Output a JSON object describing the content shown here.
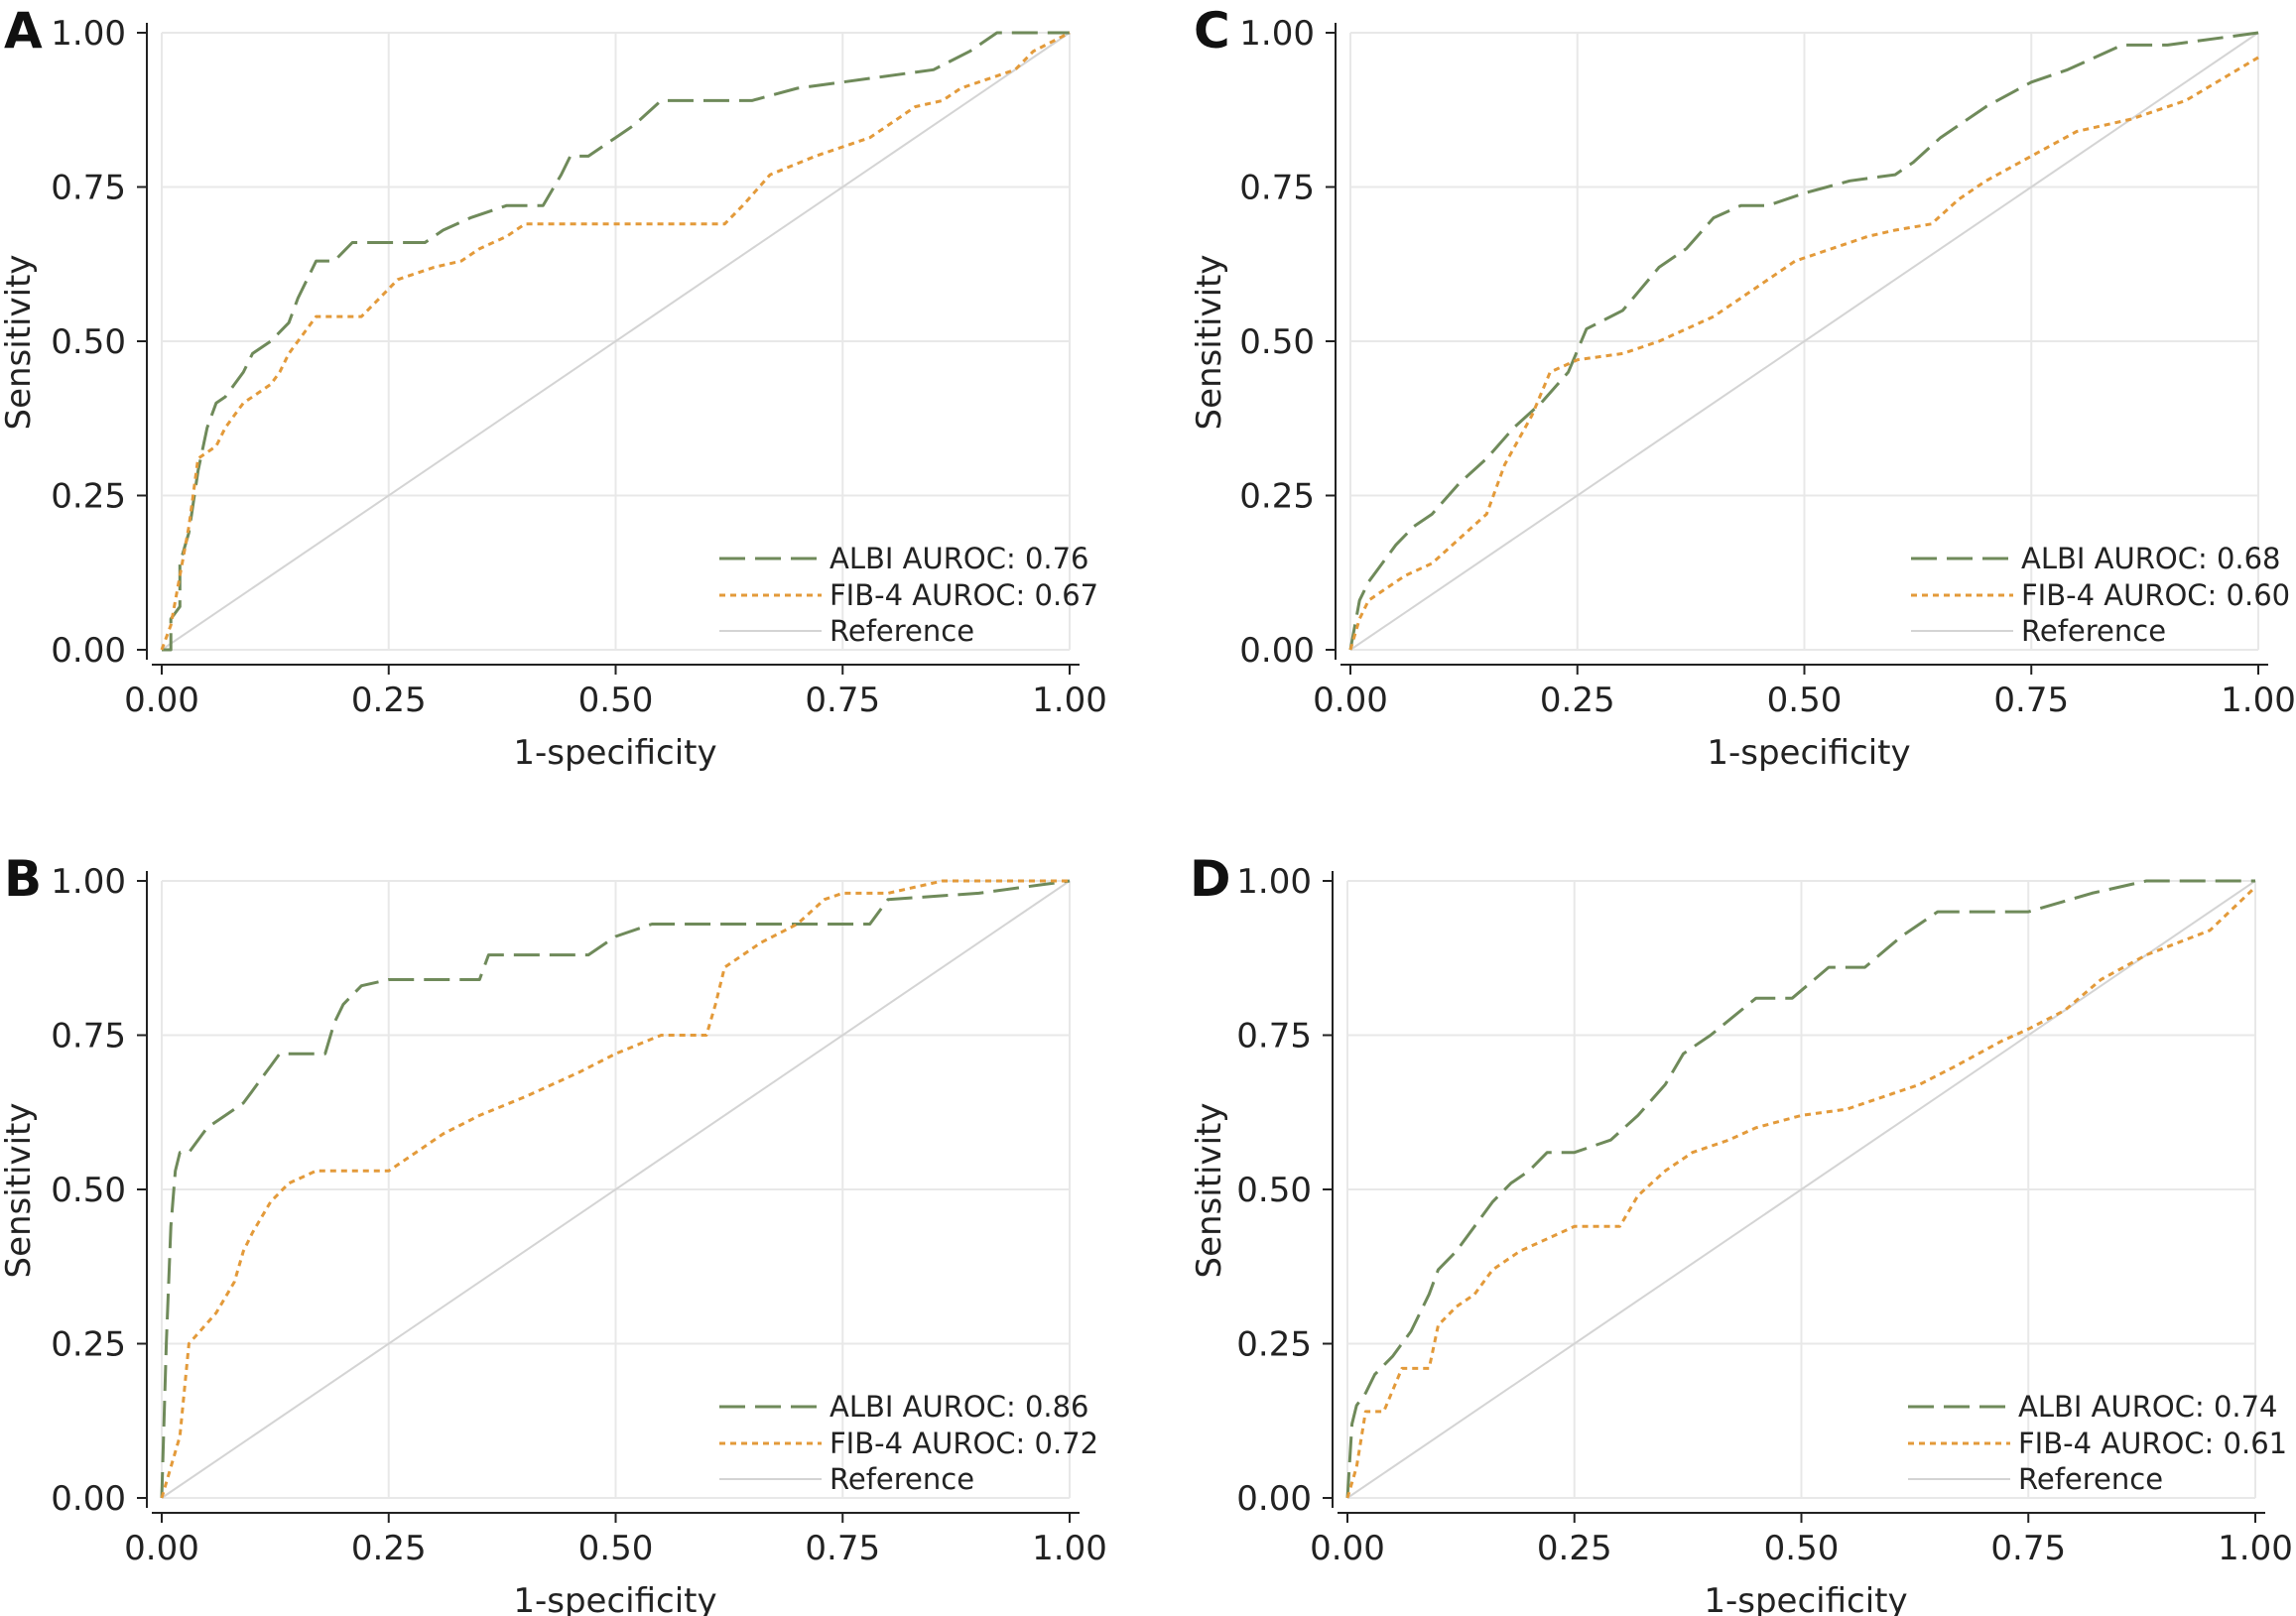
{
  "colors": {
    "albi": "#6f8a5a",
    "fib4": "#e39a3a",
    "reference": "#d4d4d4",
    "grid": "#e8e8e8",
    "axis": "#222222"
  },
  "chart_data": [
    {
      "panel": "A",
      "type": "line",
      "xlabel": "1-specificity",
      "ylabel": "Sensitivity",
      "xlim": [
        0,
        1
      ],
      "ylim": [
        0,
        1
      ],
      "ticks": [
        "0.00",
        "0.25",
        "0.50",
        "0.75",
        "1.00"
      ],
      "grid": true,
      "legend_position": "bottom-right",
      "series": [
        {
          "name": "ALBI AUROC: 0.76",
          "style": "dashed",
          "color": "#6f8a5a",
          "x": [
            0,
            0.01,
            0.01,
            0.02,
            0.02,
            0.03,
            0.04,
            0.05,
            0.06,
            0.07,
            0.08,
            0.09,
            0.1,
            0.12,
            0.14,
            0.15,
            0.17,
            0.19,
            0.21,
            0.29,
            0.31,
            0.34,
            0.38,
            0.42,
            0.44,
            0.45,
            0.47,
            0.5,
            0.52,
            0.55,
            0.65,
            0.7,
            0.85,
            0.89,
            0.92,
            1.0
          ],
          "y": [
            0,
            0,
            0.05,
            0.07,
            0.14,
            0.19,
            0.29,
            0.36,
            0.4,
            0.41,
            0.43,
            0.45,
            0.48,
            0.5,
            0.53,
            0.57,
            0.63,
            0.63,
            0.66,
            0.66,
            0.68,
            0.7,
            0.72,
            0.72,
            0.77,
            0.8,
            0.8,
            0.83,
            0.85,
            0.89,
            0.89,
            0.91,
            0.94,
            0.97,
            1.0,
            1.0
          ]
        },
        {
          "name": "FIB-4 AUROC: 0.67",
          "style": "dotted",
          "color": "#e39a3a",
          "x": [
            0,
            0.01,
            0.02,
            0.03,
            0.04,
            0.05,
            0.06,
            0.07,
            0.08,
            0.09,
            0.1,
            0.12,
            0.13,
            0.14,
            0.16,
            0.17,
            0.22,
            0.24,
            0.26,
            0.3,
            0.33,
            0.35,
            0.38,
            0.4,
            0.62,
            0.64,
            0.67,
            0.72,
            0.78,
            0.81,
            0.83,
            0.86,
            0.88,
            0.94,
            0.96,
            1.0
          ],
          "y": [
            0,
            0.04,
            0.12,
            0.2,
            0.31,
            0.32,
            0.33,
            0.36,
            0.38,
            0.4,
            0.41,
            0.43,
            0.45,
            0.48,
            0.52,
            0.54,
            0.54,
            0.57,
            0.6,
            0.62,
            0.63,
            0.65,
            0.67,
            0.69,
            0.69,
            0.72,
            0.77,
            0.8,
            0.83,
            0.86,
            0.88,
            0.89,
            0.91,
            0.94,
            0.97,
            1.0
          ]
        },
        {
          "name": "Reference",
          "style": "solid",
          "color": "#d4d4d4",
          "x": [
            0,
            1
          ],
          "y": [
            0,
            1
          ]
        }
      ]
    },
    {
      "panel": "C",
      "type": "line",
      "xlabel": "1-specificity",
      "ylabel": "Sensitivity",
      "xlim": [
        0,
        1
      ],
      "ylim": [
        0,
        1
      ],
      "ticks": [
        "0.00",
        "0.25",
        "0.50",
        "0.75",
        "1.00"
      ],
      "grid": true,
      "legend_position": "bottom-right",
      "series": [
        {
          "name": "ALBI AUROC: 0.68",
          "style": "dashed",
          "color": "#6f8a5a",
          "x": [
            0,
            0.01,
            0.02,
            0.03,
            0.05,
            0.07,
            0.09,
            0.12,
            0.15,
            0.18,
            0.21,
            0.24,
            0.26,
            0.3,
            0.34,
            0.37,
            0.4,
            0.43,
            0.46,
            0.5,
            0.55,
            0.6,
            0.62,
            0.65,
            0.7,
            0.75,
            0.79,
            0.85,
            0.9,
            1.0
          ],
          "y": [
            0,
            0.08,
            0.11,
            0.13,
            0.17,
            0.2,
            0.22,
            0.27,
            0.31,
            0.36,
            0.4,
            0.45,
            0.52,
            0.55,
            0.62,
            0.65,
            0.7,
            0.72,
            0.72,
            0.74,
            0.76,
            0.77,
            0.79,
            0.83,
            0.88,
            0.92,
            0.94,
            0.98,
            0.98,
            1.0
          ]
        },
        {
          "name": "FIB-4 AUROC: 0.60",
          "style": "dotted",
          "color": "#e39a3a",
          "x": [
            0,
            0.01,
            0.02,
            0.04,
            0.06,
            0.09,
            0.12,
            0.15,
            0.17,
            0.2,
            0.22,
            0.25,
            0.3,
            0.34,
            0.37,
            0.4,
            0.43,
            0.46,
            0.49,
            0.53,
            0.57,
            0.6,
            0.64,
            0.67,
            0.7,
            0.75,
            0.8,
            0.86,
            0.92,
            1.0
          ],
          "y": [
            0,
            0.05,
            0.08,
            0.1,
            0.12,
            0.14,
            0.18,
            0.22,
            0.3,
            0.38,
            0.45,
            0.47,
            0.48,
            0.5,
            0.52,
            0.54,
            0.57,
            0.6,
            0.63,
            0.65,
            0.67,
            0.68,
            0.69,
            0.73,
            0.76,
            0.8,
            0.84,
            0.86,
            0.89,
            0.96
          ]
        },
        {
          "name": "Reference",
          "style": "solid",
          "color": "#d4d4d4",
          "x": [
            0,
            1
          ],
          "y": [
            0,
            1
          ]
        }
      ]
    },
    {
      "panel": "B",
      "type": "line",
      "xlabel": "1-specificity",
      "ylabel": "Sensitivity",
      "xlim": [
        0,
        1
      ],
      "ylim": [
        0,
        1
      ],
      "ticks": [
        "0.00",
        "0.25",
        "0.50",
        "0.75",
        "1.00"
      ],
      "grid": true,
      "legend_position": "bottom-right",
      "series": [
        {
          "name": "ALBI AUROC: 0.86",
          "style": "dashed",
          "color": "#6f8a5a",
          "x": [
            0,
            0.005,
            0.01,
            0.015,
            0.02,
            0.03,
            0.05,
            0.07,
            0.09,
            0.1,
            0.11,
            0.12,
            0.13,
            0.14,
            0.18,
            0.19,
            0.2,
            0.22,
            0.25,
            0.35,
            0.36,
            0.39,
            0.47,
            0.5,
            0.54,
            0.64,
            0.7,
            0.78,
            0.8,
            0.9,
            1.0
          ],
          "y": [
            0,
            0.25,
            0.44,
            0.53,
            0.56,
            0.56,
            0.6,
            0.62,
            0.64,
            0.66,
            0.68,
            0.7,
            0.72,
            0.72,
            0.72,
            0.77,
            0.8,
            0.83,
            0.84,
            0.84,
            0.88,
            0.88,
            0.88,
            0.91,
            0.93,
            0.93,
            0.93,
            0.93,
            0.97,
            0.98,
            1.0
          ]
        },
        {
          "name": "FIB-4 AUROC: 0.72",
          "style": "dotted",
          "color": "#e39a3a",
          "x": [
            0,
            0.01,
            0.02,
            0.03,
            0.06,
            0.08,
            0.09,
            0.1,
            0.12,
            0.14,
            0.17,
            0.25,
            0.28,
            0.31,
            0.35,
            0.4,
            0.46,
            0.5,
            0.55,
            0.6,
            0.61,
            0.62,
            0.66,
            0.7,
            0.73,
            0.75,
            0.8,
            0.86,
            1.0
          ],
          "y": [
            0,
            0.05,
            0.1,
            0.25,
            0.3,
            0.35,
            0.4,
            0.43,
            0.48,
            0.51,
            0.53,
            0.53,
            0.56,
            0.59,
            0.62,
            0.65,
            0.69,
            0.72,
            0.75,
            0.75,
            0.8,
            0.86,
            0.9,
            0.93,
            0.97,
            0.98,
            0.98,
            1.0,
            1.0
          ]
        },
        {
          "name": "Reference",
          "style": "solid",
          "color": "#d4d4d4",
          "x": [
            0,
            1
          ],
          "y": [
            0,
            1
          ]
        }
      ]
    },
    {
      "panel": "D",
      "type": "line",
      "xlabel": "1-specificity",
      "ylabel": "Sensitivity",
      "xlim": [
        0,
        1
      ],
      "ylim": [
        0,
        1
      ],
      "ticks": [
        "0.00",
        "0.25",
        "0.50",
        "0.75",
        "1.00"
      ],
      "grid": true,
      "legend_position": "bottom-right",
      "series": [
        {
          "name": "ALBI AUROC: 0.74",
          "style": "dashed",
          "color": "#6f8a5a",
          "x": [
            0,
            0.005,
            0.01,
            0.02,
            0.03,
            0.05,
            0.07,
            0.09,
            0.1,
            0.12,
            0.14,
            0.16,
            0.18,
            0.2,
            0.22,
            0.25,
            0.29,
            0.32,
            0.35,
            0.37,
            0.4,
            0.45,
            0.49,
            0.53,
            0.57,
            0.61,
            0.65,
            0.75,
            0.82,
            0.88,
            1.0
          ],
          "y": [
            0,
            0.12,
            0.15,
            0.17,
            0.2,
            0.23,
            0.27,
            0.33,
            0.37,
            0.4,
            0.44,
            0.48,
            0.51,
            0.53,
            0.56,
            0.56,
            0.58,
            0.62,
            0.67,
            0.72,
            0.75,
            0.81,
            0.81,
            0.86,
            0.86,
            0.91,
            0.95,
            0.95,
            0.98,
            1.0,
            1.0
          ]
        },
        {
          "name": "FIB-4 AUROC: 0.61",
          "style": "dotted",
          "color": "#e39a3a",
          "x": [
            0,
            0.01,
            0.02,
            0.04,
            0.06,
            0.09,
            0.1,
            0.12,
            0.14,
            0.16,
            0.19,
            0.22,
            0.25,
            0.3,
            0.32,
            0.35,
            0.38,
            0.42,
            0.45,
            0.5,
            0.55,
            0.59,
            0.63,
            0.67,
            0.72,
            0.75,
            0.79,
            0.83,
            0.88,
            0.95,
            1.0
          ],
          "y": [
            0,
            0.05,
            0.14,
            0.14,
            0.21,
            0.21,
            0.28,
            0.31,
            0.33,
            0.37,
            0.4,
            0.42,
            0.44,
            0.44,
            0.49,
            0.53,
            0.56,
            0.58,
            0.6,
            0.62,
            0.63,
            0.65,
            0.67,
            0.7,
            0.74,
            0.76,
            0.79,
            0.84,
            0.88,
            0.92,
            0.99
          ]
        },
        {
          "name": "Reference",
          "style": "solid",
          "color": "#d4d4d4",
          "x": [
            0,
            1
          ],
          "y": [
            0,
            1
          ]
        }
      ]
    }
  ]
}
